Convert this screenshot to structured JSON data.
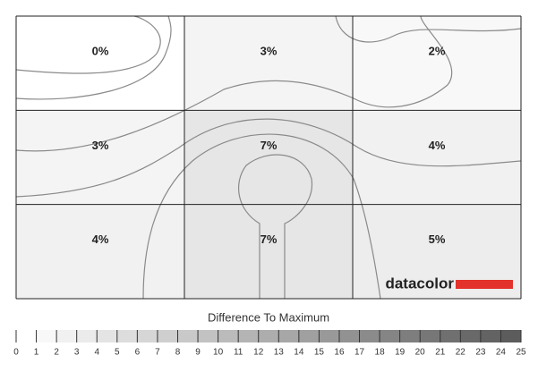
{
  "chart_data": {
    "type": "heatmap",
    "values": [
      [
        0,
        3,
        2
      ],
      [
        3,
        7,
        4
      ],
      [
        4,
        7,
        5
      ]
    ],
    "value_labels": [
      [
        "0%",
        "3%",
        "2%"
      ],
      [
        "3%",
        "7%",
        "4%"
      ],
      [
        "4%",
        "7%",
        "5%"
      ]
    ],
    "brand": "datacolor",
    "scale_title": "Difference To Maximum",
    "scale_ticks": [
      0,
      1,
      2,
      3,
      4,
      5,
      6,
      7,
      8,
      9,
      10,
      11,
      12,
      13,
      14,
      15,
      16,
      17,
      18,
      19,
      20,
      21,
      22,
      23,
      24,
      25
    ]
  }
}
